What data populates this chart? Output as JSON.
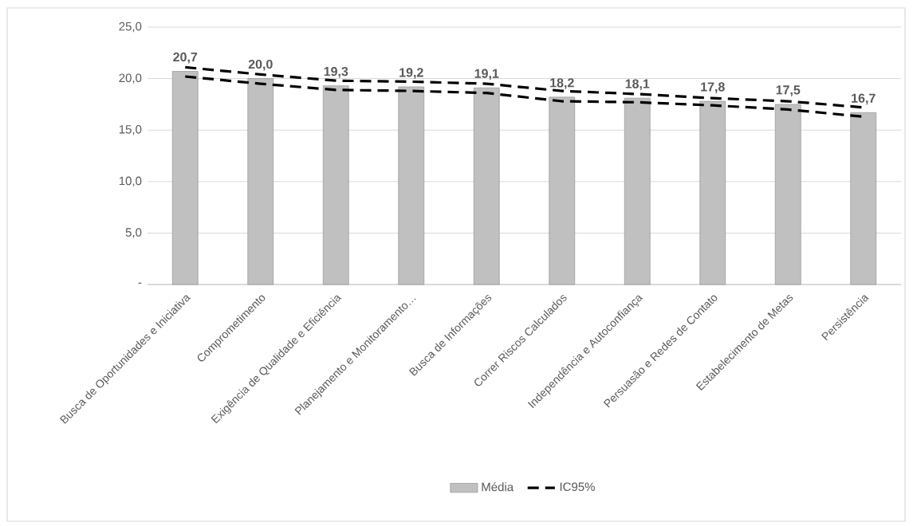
{
  "chart_data": {
    "type": "bar",
    "categories": [
      "Busca de Oportunidades e Iniciativa",
      "Comprometimento",
      "Exigência de Qualidade e Eficiência",
      "Planejamento e Monitoramento…",
      "Busca de Informações",
      "Correr Riscos Calculados",
      "Independência e Autoconfiança",
      "Persuasão e Redes de Contato",
      "Estabelecimento de Metas",
      "Persistência"
    ],
    "series": [
      {
        "name": "Média",
        "color": "#c0c0c0",
        "values": [
          20.7,
          20.0,
          19.3,
          19.2,
          19.1,
          18.2,
          18.1,
          17.8,
          17.5,
          16.7
        ],
        "value_labels": [
          "20,7",
          "20,0",
          "19,3",
          "19,2",
          "19,1",
          "18,2",
          "18,1",
          "17,8",
          "17,5",
          "16,7"
        ]
      },
      {
        "name": "IC95%",
        "type": "line",
        "color": "#000000",
        "line_style": "dashed",
        "values": [
          21.1,
          20.4,
          19.8,
          19.7,
          19.5,
          18.8,
          18.5,
          18.1,
          17.8,
          17.2
        ]
      },
      {
        "type": "line",
        "color": "#000000",
        "line_style": "dashed",
        "values": [
          20.2,
          19.5,
          18.9,
          18.8,
          18.6,
          17.8,
          17.7,
          17.4,
          17.0,
          16.3
        ]
      }
    ],
    "ylim": [
      0,
      25
    ],
    "yticks": [
      {
        "value": 0,
        "label": "-"
      },
      {
        "value": 5,
        "label": "5,0"
      },
      {
        "value": 10,
        "label": "10,0"
      },
      {
        "value": 15,
        "label": "15,0"
      },
      {
        "value": 20,
        "label": "20,0"
      },
      {
        "value": 25,
        "label": "25,0"
      }
    ],
    "grid": "y",
    "legend": "bottom",
    "marker": "none"
  }
}
